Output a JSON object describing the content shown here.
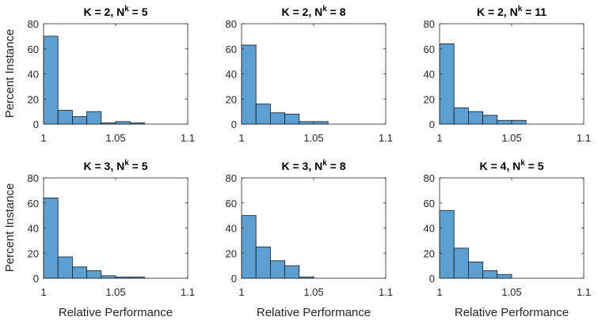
{
  "figure": {
    "ylabel": "Percent Instance",
    "xlabel": "Relative Performance"
  },
  "colors": {
    "bar_fill": "#5c9fd3",
    "bar_edge": "#1a1a1a",
    "axes": "#262626"
  },
  "chart_data": [
    {
      "type": "bar",
      "title_main": "K = 2, N",
      "title_sup": "k",
      "title_tail": " = 5",
      "bin_edges": [
        1,
        1.01,
        1.02,
        1.03,
        1.04,
        1.05,
        1.06,
        1.07
      ],
      "values": [
        70,
        11,
        6,
        10,
        1,
        2,
        1
      ],
      "xlim": [
        1,
        1.1
      ],
      "ylim": [
        0,
        80
      ],
      "xticks": [
        "1",
        "1.05",
        "1.1"
      ],
      "yticks": [
        "0",
        "20",
        "40",
        "60",
        "80"
      ]
    },
    {
      "type": "bar",
      "title_main": "K = 2, N",
      "title_sup": "k",
      "title_tail": " = 8",
      "bin_edges": [
        1,
        1.01,
        1.02,
        1.03,
        1.04,
        1.05,
        1.06
      ],
      "values": [
        63,
        16,
        9,
        8,
        2,
        2
      ],
      "xlim": [
        1,
        1.1
      ],
      "ylim": [
        0,
        80
      ],
      "xticks": [
        "1",
        "1.05",
        "1.1"
      ],
      "yticks": [
        "0",
        "20",
        "40",
        "60",
        "80"
      ]
    },
    {
      "type": "bar",
      "title_main": "K = 2, N",
      "title_sup": "k",
      "title_tail": " = 11",
      "bin_edges": [
        1,
        1.01,
        1.02,
        1.03,
        1.04,
        1.05,
        1.06
      ],
      "values": [
        64,
        13,
        10,
        7,
        3,
        3
      ],
      "xlim": [
        1,
        1.1
      ],
      "ylim": [
        0,
        80
      ],
      "xticks": [
        "1",
        "1.05",
        "1.1"
      ],
      "yticks": [
        "0",
        "20",
        "40",
        "60",
        "80"
      ]
    },
    {
      "type": "bar",
      "title_main": "K = 3, N",
      "title_sup": "k",
      "title_tail": " = 5",
      "bin_edges": [
        1,
        1.01,
        1.02,
        1.03,
        1.04,
        1.05,
        1.06,
        1.07
      ],
      "values": [
        64,
        17,
        9,
        6,
        2,
        1,
        1
      ],
      "xlim": [
        1,
        1.1
      ],
      "ylim": [
        0,
        80
      ],
      "xticks": [
        "1",
        "1.05",
        "1.1"
      ],
      "yticks": [
        "0",
        "20",
        "40",
        "60",
        "80"
      ]
    },
    {
      "type": "bar",
      "title_main": "K = 3, N",
      "title_sup": "k",
      "title_tail": " = 8",
      "bin_edges": [
        1,
        1.01,
        1.02,
        1.03,
        1.04,
        1.05
      ],
      "values": [
        50,
        25,
        14,
        10,
        1
      ],
      "xlim": [
        1,
        1.1
      ],
      "ylim": [
        0,
        80
      ],
      "xticks": [
        "1",
        "1.05",
        "1.1"
      ],
      "yticks": [
        "0",
        "20",
        "40",
        "60",
        "80"
      ]
    },
    {
      "type": "bar",
      "title_main": "K = 4, N",
      "title_sup": "k",
      "title_tail": " = 5",
      "bin_edges": [
        1,
        1.01,
        1.02,
        1.03,
        1.04,
        1.05
      ],
      "values": [
        54,
        24,
        13,
        6,
        3
      ],
      "xlim": [
        1,
        1.1
      ],
      "ylim": [
        0,
        80
      ],
      "xticks": [
        "1",
        "1.05",
        "1.1"
      ],
      "yticks": [
        "0",
        "20",
        "40",
        "60",
        "80"
      ]
    }
  ]
}
